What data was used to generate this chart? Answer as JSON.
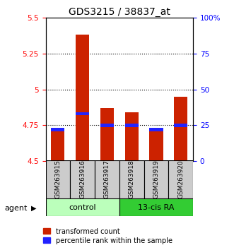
{
  "title": "GDS3215 / 38837_at",
  "categories": [
    "GSM263915",
    "GSM263916",
    "GSM263917",
    "GSM263918",
    "GSM263919",
    "GSM263920"
  ],
  "red_bar_values": [
    4.72,
    5.38,
    4.87,
    4.84,
    4.72,
    4.95
  ],
  "blue_marker_values": [
    4.72,
    4.83,
    4.75,
    4.75,
    4.72,
    4.75
  ],
  "y_min": 4.5,
  "y_max": 5.5,
  "y_ticks": [
    4.5,
    4.75,
    5.0,
    5.25,
    5.5
  ],
  "y_tick_labels": [
    "4.5",
    "4.75",
    "5",
    "5.25",
    "5.5"
  ],
  "y2_ticks": [
    0,
    25,
    50,
    75,
    100
  ],
  "y2_tick_labels": [
    "0",
    "25",
    "50",
    "75",
    "100%"
  ],
  "control_group": [
    0,
    1,
    2
  ],
  "treatment_group": [
    3,
    4,
    5
  ],
  "control_label": "control",
  "treatment_label": "13-cis RA",
  "agent_label": "agent",
  "legend_red": "transformed count",
  "legend_blue": "percentile rank within the sample",
  "bar_color": "#cc2200",
  "blue_color": "#2222ff",
  "control_bg": "#bbffbb",
  "treatment_bg": "#33cc33",
  "bar_width": 0.55,
  "title_fontsize": 10,
  "tick_fontsize": 7.5,
  "legend_fontsize": 7,
  "label_fontsize": 8,
  "sample_fontsize": 6.5,
  "group_fontsize": 8
}
